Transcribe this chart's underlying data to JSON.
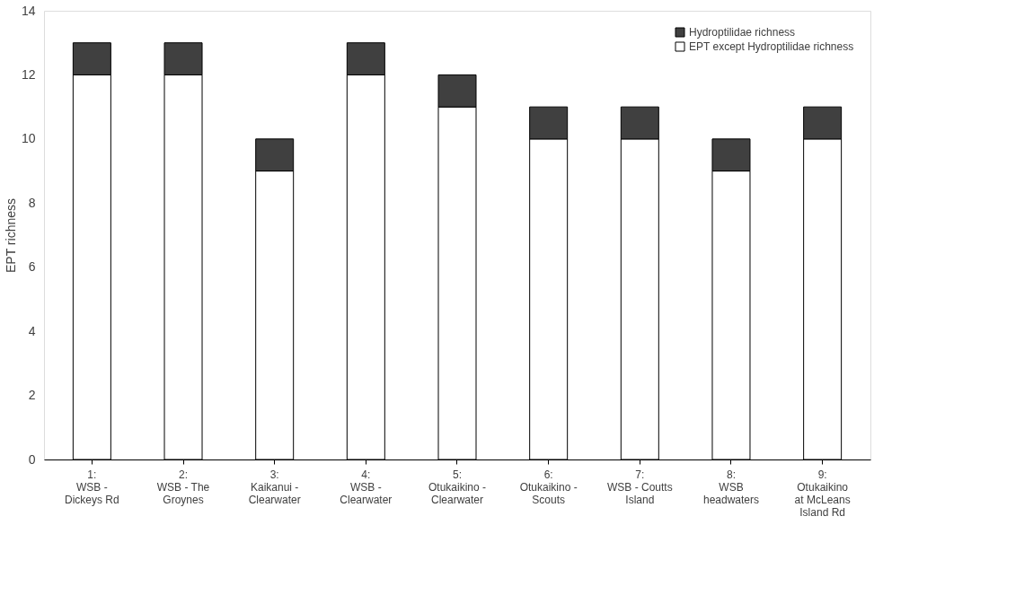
{
  "chart_data": {
    "type": "bar",
    "stacked": true,
    "ylabel": "EPT  richness",
    "categories": [
      "1:\nWSB -\nDickeys Rd",
      "2:\nWSB - The\nGroynes",
      "3:\nKaikanui -\nClearwater",
      "4:\nWSB -\nClearwater",
      "5:\nOtukaikino -\nClearwater",
      "6:\nOtukaikino -\nScouts",
      "7:\nWSB - Coutts\nIsland",
      "8:\nWSB\nheadwaters",
      "9:\nOtukaikino\nat McLeans\nIsland Rd"
    ],
    "series": [
      {
        "name": "EPT except Hydroptilidae richness",
        "color": "#ffffff",
        "values": [
          12,
          12,
          9,
          12,
          11,
          10,
          10,
          9,
          10
        ]
      },
      {
        "name": "Hydroptilidae richness",
        "color": "#404040",
        "values": [
          1,
          1,
          1,
          1,
          1,
          1,
          1,
          1,
          1
        ]
      }
    ],
    "ylim": [
      0,
      14
    ],
    "yticks": [
      0,
      2,
      4,
      6,
      8,
      10,
      12,
      14
    ],
    "grid": false,
    "legend": "top right"
  }
}
